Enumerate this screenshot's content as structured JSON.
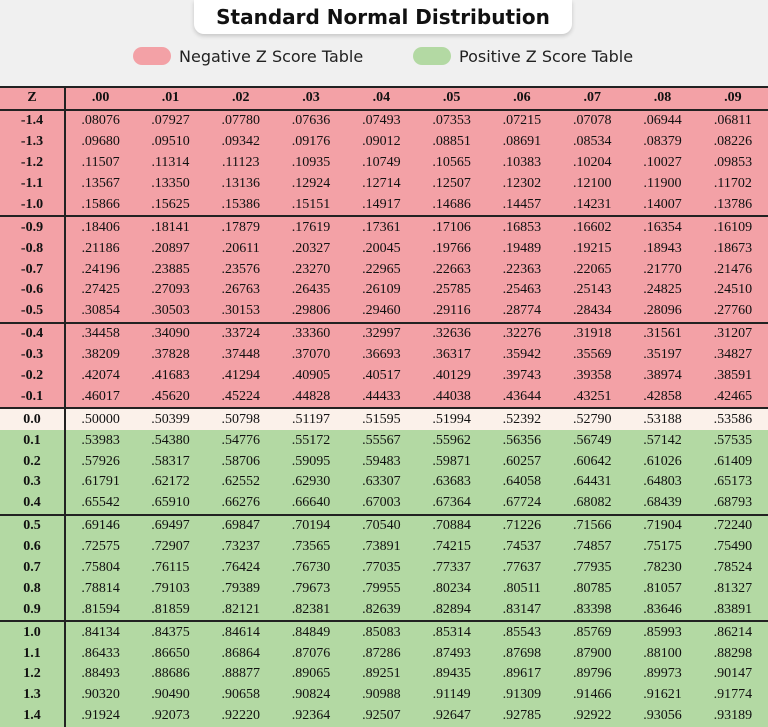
{
  "title": "Standard Normal Distribution",
  "legend": {
    "negative": {
      "label": "Negative Z Score Table",
      "color": "#f3a1a6"
    },
    "positive": {
      "label": "Positive Z Score Table",
      "color": "#b3d9a3"
    }
  },
  "chart_data": {
    "type": "table",
    "columns": [
      "Z",
      ".00",
      ".01",
      ".02",
      ".03",
      ".04",
      ".05",
      ".06",
      ".07",
      ".08",
      ".09"
    ],
    "rows": [
      {
        "z": "-1.4",
        "values": [
          ".08076",
          ".07927",
          ".07780",
          ".07636",
          ".07493",
          ".07353",
          ".07215",
          ".07078",
          ".06944",
          ".06811"
        ]
      },
      {
        "z": "-1.3",
        "values": [
          ".09680",
          ".09510",
          ".09342",
          ".09176",
          ".09012",
          ".08851",
          ".08691",
          ".08534",
          ".08379",
          ".08226"
        ]
      },
      {
        "z": "-1.2",
        "values": [
          ".11507",
          ".11314",
          ".11123",
          ".10935",
          ".10749",
          ".10565",
          ".10383",
          ".10204",
          ".10027",
          ".09853"
        ]
      },
      {
        "z": "-1.1",
        "values": [
          ".13567",
          ".13350",
          ".13136",
          ".12924",
          ".12714",
          ".12507",
          ".12302",
          ".12100",
          ".11900",
          ".11702"
        ]
      },
      {
        "z": "-1.0",
        "values": [
          ".15866",
          ".15625",
          ".15386",
          ".15151",
          ".14917",
          ".14686",
          ".14457",
          ".14231",
          ".14007",
          ".13786"
        ]
      },
      {
        "z": "-0.9",
        "values": [
          ".18406",
          ".18141",
          ".17879",
          ".17619",
          ".17361",
          ".17106",
          ".16853",
          ".16602",
          ".16354",
          ".16109"
        ]
      },
      {
        "z": "-0.8",
        "values": [
          ".21186",
          ".20897",
          ".20611",
          ".20327",
          ".20045",
          ".19766",
          ".19489",
          ".19215",
          ".18943",
          ".18673"
        ]
      },
      {
        "z": "-0.7",
        "values": [
          ".24196",
          ".23885",
          ".23576",
          ".23270",
          ".22965",
          ".22663",
          ".22363",
          ".22065",
          ".21770",
          ".21476"
        ]
      },
      {
        "z": "-0.6",
        "values": [
          ".27425",
          ".27093",
          ".26763",
          ".26435",
          ".26109",
          ".25785",
          ".25463",
          ".25143",
          ".24825",
          ".24510"
        ]
      },
      {
        "z": "-0.5",
        "values": [
          ".30854",
          ".30503",
          ".30153",
          ".29806",
          ".29460",
          ".29116",
          ".28774",
          ".28434",
          ".28096",
          ".27760"
        ]
      },
      {
        "z": "-0.4",
        "values": [
          ".34458",
          ".34090",
          ".33724",
          ".33360",
          ".32997",
          ".32636",
          ".32276",
          ".31918",
          ".31561",
          ".31207"
        ]
      },
      {
        "z": "-0.3",
        "values": [
          ".38209",
          ".37828",
          ".37448",
          ".37070",
          ".36693",
          ".36317",
          ".35942",
          ".35569",
          ".35197",
          ".34827"
        ]
      },
      {
        "z": "-0.2",
        "values": [
          ".42074",
          ".41683",
          ".41294",
          ".40905",
          ".40517",
          ".40129",
          ".39743",
          ".39358",
          ".38974",
          ".38591"
        ]
      },
      {
        "z": "-0.1",
        "values": [
          ".46017",
          ".45620",
          ".45224",
          ".44828",
          ".44433",
          ".44038",
          ".43644",
          ".43251",
          ".42858",
          ".42465"
        ]
      },
      {
        "z": "0.0",
        "values": [
          ".50000",
          ".50399",
          ".50798",
          ".51197",
          ".51595",
          ".51994",
          ".52392",
          ".52790",
          ".53188",
          ".53586"
        ]
      },
      {
        "z": "0.1",
        "values": [
          ".53983",
          ".54380",
          ".54776",
          ".55172",
          ".55567",
          ".55962",
          ".56356",
          ".56749",
          ".57142",
          ".57535"
        ]
      },
      {
        "z": "0.2",
        "values": [
          ".57926",
          ".58317",
          ".58706",
          ".59095",
          ".59483",
          ".59871",
          ".60257",
          ".60642",
          ".61026",
          ".61409"
        ]
      },
      {
        "z": "0.3",
        "values": [
          ".61791",
          ".62172",
          ".62552",
          ".62930",
          ".63307",
          ".63683",
          ".64058",
          ".64431",
          ".64803",
          ".65173"
        ]
      },
      {
        "z": "0.4",
        "values": [
          ".65542",
          ".65910",
          ".66276",
          ".66640",
          ".67003",
          ".67364",
          ".67724",
          ".68082",
          ".68439",
          ".68793"
        ]
      },
      {
        "z": "0.5",
        "values": [
          ".69146",
          ".69497",
          ".69847",
          ".70194",
          ".70540",
          ".70884",
          ".71226",
          ".71566",
          ".71904",
          ".72240"
        ]
      },
      {
        "z": "0.6",
        "values": [
          ".72575",
          ".72907",
          ".73237",
          ".73565",
          ".73891",
          ".74215",
          ".74537",
          ".74857",
          ".75175",
          ".75490"
        ]
      },
      {
        "z": "0.7",
        "values": [
          ".75804",
          ".76115",
          ".76424",
          ".76730",
          ".77035",
          ".77337",
          ".77637",
          ".77935",
          ".78230",
          ".78524"
        ]
      },
      {
        "z": "0.8",
        "values": [
          ".78814",
          ".79103",
          ".79389",
          ".79673",
          ".79955",
          ".80234",
          ".80511",
          ".80785",
          ".81057",
          ".81327"
        ]
      },
      {
        "z": "0.9",
        "values": [
          ".81594",
          ".81859",
          ".82121",
          ".82381",
          ".82639",
          ".82894",
          ".83147",
          ".83398",
          ".83646",
          ".83891"
        ]
      },
      {
        "z": "1.0",
        "values": [
          ".84134",
          ".84375",
          ".84614",
          ".84849",
          ".85083",
          ".85314",
          ".85543",
          ".85769",
          ".85993",
          ".86214"
        ]
      },
      {
        "z": "1.1",
        "values": [
          ".86433",
          ".86650",
          ".86864",
          ".87076",
          ".87286",
          ".87493",
          ".87698",
          ".87900",
          ".88100",
          ".88298"
        ]
      },
      {
        "z": "1.2",
        "values": [
          ".88493",
          ".88686",
          ".88877",
          ".89065",
          ".89251",
          ".89435",
          ".89617",
          ".89796",
          ".89973",
          ".90147"
        ]
      },
      {
        "z": "1.3",
        "values": [
          ".90320",
          ".90490",
          ".90658",
          ".90824",
          ".90988",
          ".91149",
          ".91309",
          ".91466",
          ".91621",
          ".91774"
        ]
      },
      {
        "z": "1.4",
        "values": [
          ".91924",
          ".92073",
          ".92220",
          ".92364",
          ".92507",
          ".92647",
          ".92785",
          ".92922",
          ".93056",
          ".93189"
        ]
      }
    ]
  }
}
